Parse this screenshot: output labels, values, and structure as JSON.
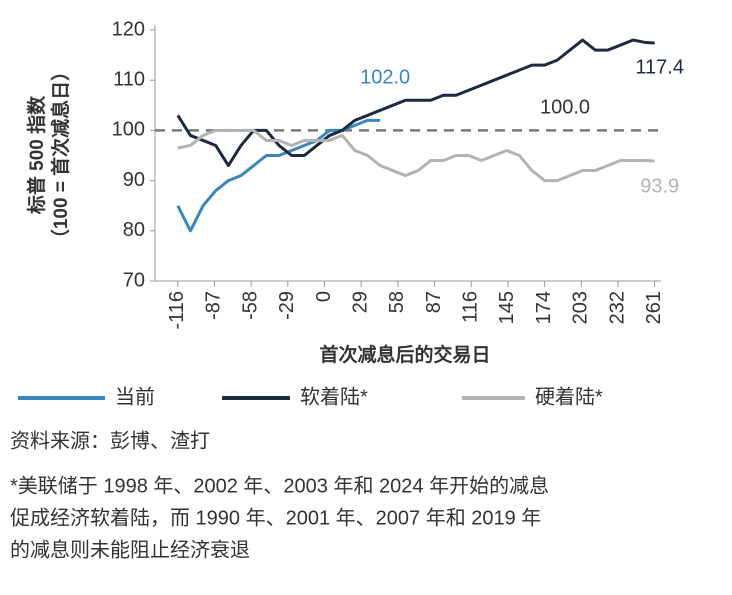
{
  "chart_data": {
    "type": "line",
    "ylabel": [
      "标普 500 指数",
      "（100 = 首次减息日）"
    ],
    "xlabel": "首次减息后的交易日",
    "x": [
      -116,
      -106,
      -96,
      -86,
      -76,
      -66,
      -56,
      -46,
      -36,
      -26,
      -16,
      -6,
      4,
      14,
      24,
      34,
      44,
      54,
      64,
      74,
      84,
      94,
      104,
      114,
      124,
      134,
      144,
      154,
      164,
      174,
      184,
      194,
      204,
      214,
      224,
      234,
      244,
      254,
      261
    ],
    "series": [
      {
        "name": "当前",
        "color": "#3a87c0",
        "end_label": "102.0",
        "values": [
          85,
          80,
          85,
          88,
          90,
          91,
          93,
          95,
          95,
          96,
          97,
          98,
          100,
          100,
          101,
          102,
          102.0,
          null,
          null,
          null,
          null,
          null,
          null,
          null,
          null,
          null,
          null,
          null,
          null,
          null,
          null,
          null,
          null,
          null,
          null,
          null,
          null,
          null,
          null
        ]
      },
      {
        "name": "软着陆*",
        "color": "#1c2b3f",
        "end_label": "117.4",
        "values": [
          103,
          99,
          98,
          97,
          93,
          97,
          100,
          100,
          97,
          95,
          95,
          97,
          99,
          100,
          102,
          103,
          104,
          105,
          106,
          106,
          106,
          107,
          107,
          108,
          109,
          110,
          111,
          112,
          113,
          113,
          114,
          116,
          118,
          116,
          116,
          117,
          118,
          117.5,
          117.4
        ]
      },
      {
        "name": "硬着陆*",
        "color": "#b3b3b3",
        "end_label": "93.9",
        "values": [
          96.5,
          97,
          99,
          100,
          100,
          100,
          100,
          98,
          98,
          97,
          98,
          98,
          98,
          99,
          96,
          95,
          93,
          92,
          91,
          92,
          94,
          94,
          95,
          95,
          94,
          95,
          96,
          95,
          92,
          90,
          90,
          91,
          92,
          92,
          93,
          94,
          94,
          94,
          93.9
        ]
      }
    ],
    "reference_line": {
      "value": 100,
      "label": "100.0",
      "color": "#7a7a7a"
    },
    "xlim": [
      -134,
      266
    ],
    "xticks": [
      -116,
      -87,
      -58,
      -29,
      0,
      29,
      58,
      87,
      116,
      145,
      174,
      203,
      232,
      261
    ],
    "ylim": [
      70,
      120
    ],
    "yticks": [
      70,
      80,
      90,
      100,
      110,
      120
    ],
    "grid": false,
    "legend": "bottom",
    "source": "资料来源：彭博、渣打",
    "footnote": [
      "*美联储于 1998 年、2002 年、2003 年和 2024 年开始的减息",
      "促成经济软着陆，而 1990 年、2001 年、2007 年和 2019 年",
      "的减息则未能阻止经济衰退"
    ]
  }
}
